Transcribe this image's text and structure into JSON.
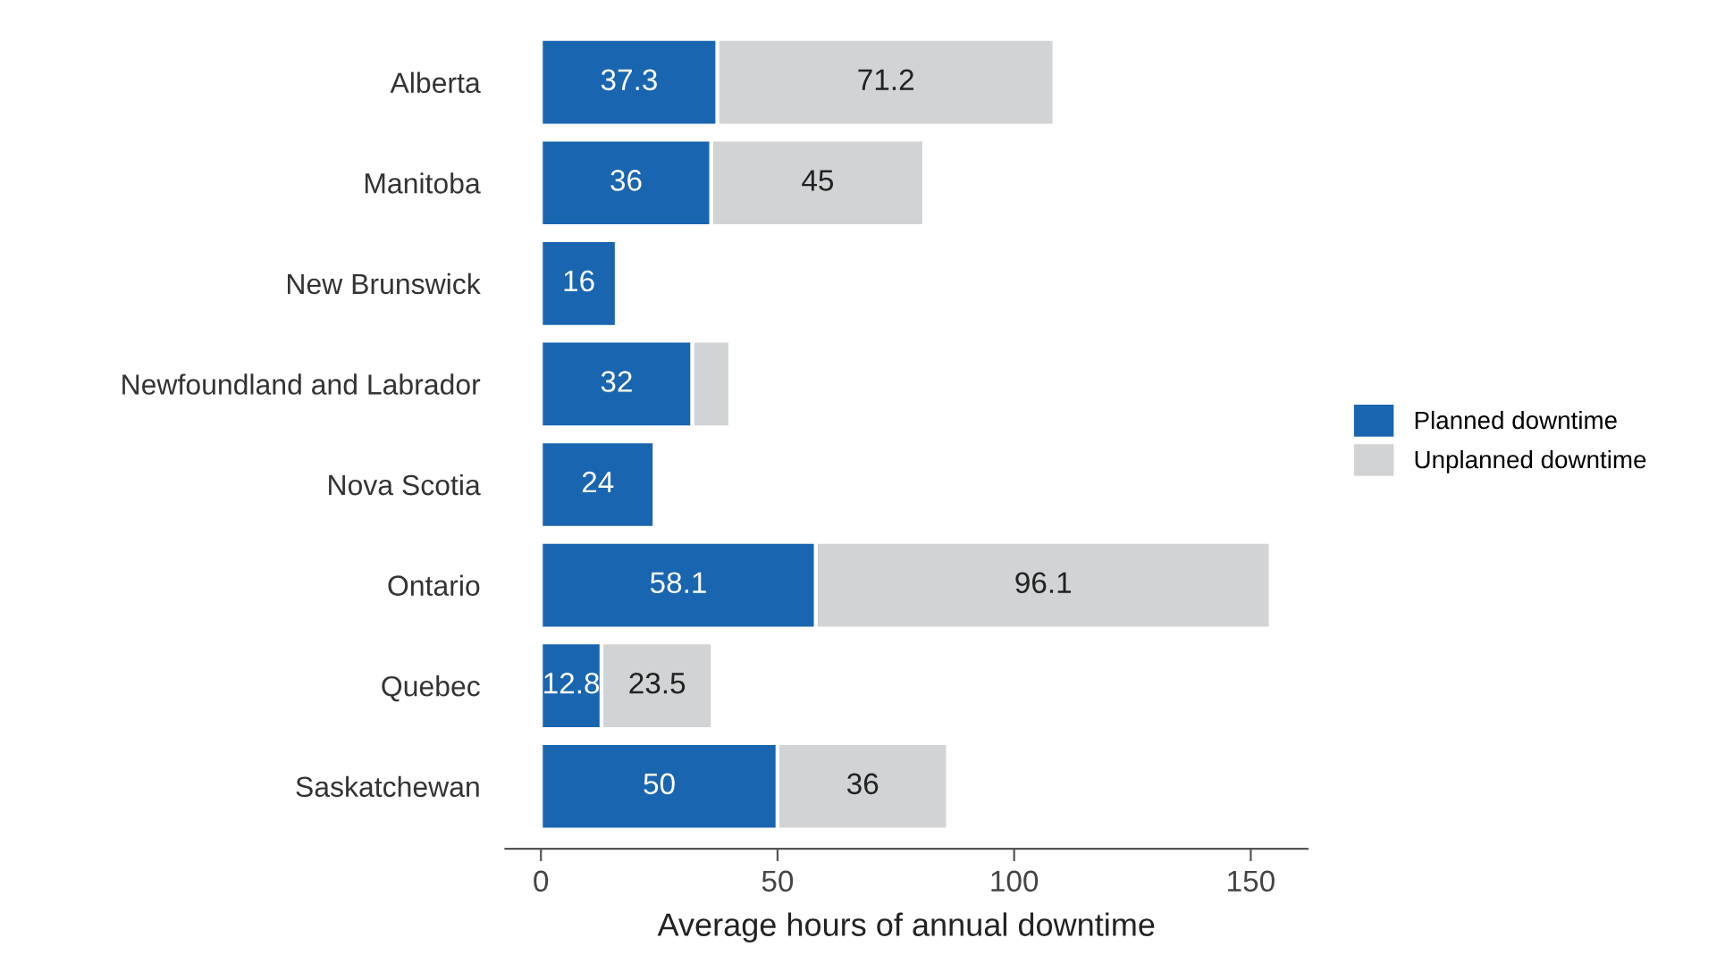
{
  "chart_data": {
    "type": "bar",
    "orientation": "horizontal",
    "stacked": true,
    "categories": [
      "Alberta",
      "Manitoba",
      "New Brunswick",
      "Newfoundland and Labrador",
      "Nova Scotia",
      "Ontario",
      "Quebec",
      "Saskatchewan"
    ],
    "series": [
      {
        "name": "Planned downtime",
        "color": "#1a65b0",
        "values": [
          37.3,
          36,
          16,
          32,
          24,
          58.1,
          12.8,
          50
        ],
        "value_labels": [
          "37.3",
          "36",
          "16",
          "32",
          "24",
          "58.1",
          "12.8",
          "50"
        ]
      },
      {
        "name": "Unplanned downtime",
        "color": "#d1d3d4",
        "values": [
          71.2,
          45,
          null,
          8,
          null,
          96.1,
          23.5,
          36
        ],
        "value_labels": [
          "71.2",
          "45",
          null,
          null,
          null,
          "96.1",
          "23.5",
          "36"
        ]
      }
    ],
    "xlabel": "Average hours of annual downtime",
    "xlim": [
      -7.5,
      162
    ],
    "xticks": [
      0,
      50,
      100,
      150
    ],
    "grid": false,
    "legend": "right"
  }
}
